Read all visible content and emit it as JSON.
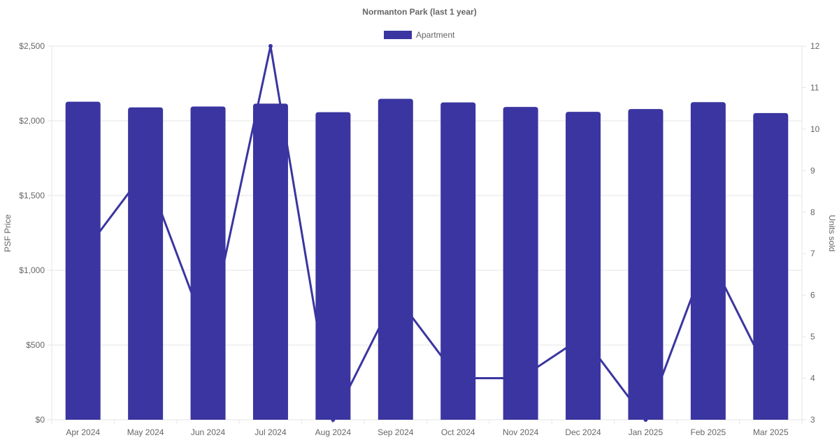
{
  "chart_data": {
    "type": "bar",
    "title": "Normanton Park (last 1 year)",
    "categories": [
      "Apr 2024",
      "May 2024",
      "Jun 2024",
      "Jul 2024",
      "Aug 2024",
      "Sep 2024",
      "Oct 2024",
      "Nov 2024",
      "Dec 2024",
      "Jan 2025",
      "Feb 2025",
      "Mar 2025"
    ],
    "series": [
      {
        "name": "Apartment",
        "type": "bar",
        "axis": "left",
        "values": [
          2128,
          2090,
          2096,
          2115,
          2058,
          2147,
          2123,
          2093,
          2060,
          2079,
          2125,
          2052
        ]
      },
      {
        "type": "line",
        "axis": "right",
        "values": [
          7,
          9,
          5,
          12,
          3,
          6,
          4,
          4,
          5,
          3,
          7,
          4
        ]
      }
    ],
    "ylabel": "PSF Price",
    "y2label": "Units sold",
    "ylim": [
      0,
      2500
    ],
    "y2lim": [
      3,
      12
    ],
    "yticks": [
      "$0",
      "$500",
      "$1,000",
      "$1,500",
      "$2,000",
      "$2,500"
    ],
    "y2ticks": [
      "3",
      "4",
      "5",
      "6",
      "7",
      "8",
      "9",
      "10",
      "11",
      "12"
    ],
    "grid": true,
    "legend_position": "top",
    "colors": {
      "bar": "#3a35a0",
      "line": "#3a35a0",
      "grid": "#e6e6e6",
      "text": "#666666"
    }
  }
}
